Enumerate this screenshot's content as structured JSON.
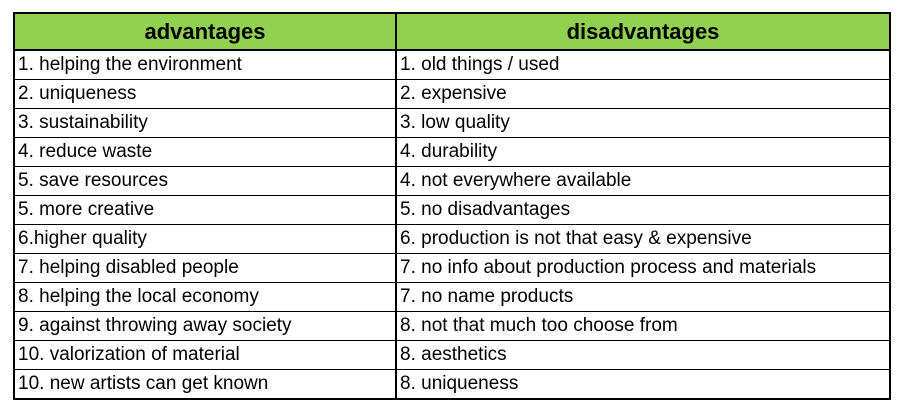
{
  "colors": {
    "header_background": "#92d050",
    "cell_background": "#ffffff",
    "border": "#000000",
    "text": "#000000"
  },
  "table": {
    "headers": [
      "advantages",
      "disadvantages"
    ],
    "rows": [
      [
        "1. helping the environment",
        "1. old things / used"
      ],
      [
        "2. uniqueness",
        "2. expensive"
      ],
      [
        "3. sustainability",
        "3. low quality"
      ],
      [
        "4. reduce waste",
        "4. durability"
      ],
      [
        "5. save resources",
        "4. not everywhere available"
      ],
      [
        "5. more creative",
        "5. no disadvantages"
      ],
      [
        "6.higher quality",
        "6. production is not that easy & expensive"
      ],
      [
        "7. helping disabled people",
        "7. no info about production process and materials"
      ],
      [
        "8. helping the local economy",
        "7. no name products"
      ],
      [
        "9. against throwing away society",
        "8. not that much too choose from"
      ],
      [
        "10. valorization of material",
        "8. aesthetics"
      ],
      [
        "10. new artists can get known",
        "8. uniqueness"
      ]
    ]
  }
}
